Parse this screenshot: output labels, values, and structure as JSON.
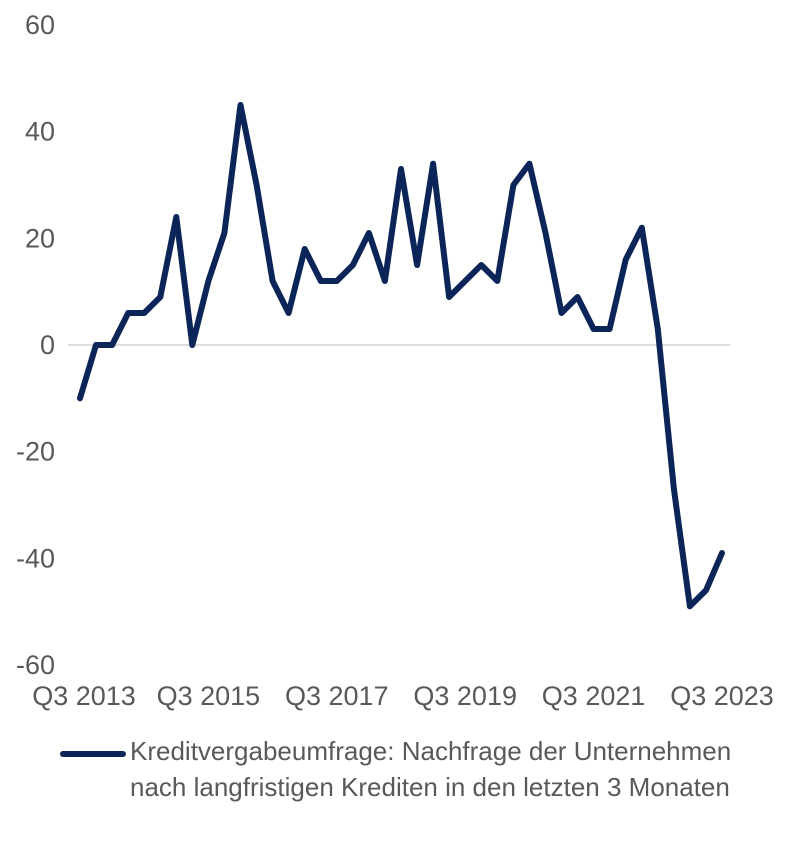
{
  "chart_data": {
    "type": "line",
    "title": "",
    "xlabel": "",
    "ylabel": "",
    "ylim": [
      -60,
      60
    ],
    "yticks": [
      60,
      40,
      20,
      0,
      -20,
      -40,
      -60
    ],
    "ytick_labels": [
      "60",
      "40",
      "20",
      "0",
      "-20",
      "-40",
      "-60"
    ],
    "xtick_labels": [
      "Q3 2013",
      "Q3 2015",
      "Q3 2017",
      "Q3 2019",
      "Q3 2021",
      "Q3 2023"
    ],
    "x": [
      "Q3 2013",
      "Q4 2013",
      "Q1 2014",
      "Q2 2014",
      "Q3 2014",
      "Q4 2014",
      "Q1 2015",
      "Q2 2015",
      "Q3 2015",
      "Q4 2015",
      "Q1 2016",
      "Q2 2016",
      "Q3 2016",
      "Q4 2016",
      "Q1 2017",
      "Q2 2017",
      "Q3 2017",
      "Q4 2017",
      "Q1 2018",
      "Q2 2018",
      "Q3 2018",
      "Q4 2018",
      "Q1 2019",
      "Q2 2019",
      "Q3 2019",
      "Q4 2019",
      "Q1 2020",
      "Q2 2020",
      "Q3 2020",
      "Q4 2020",
      "Q1 2021",
      "Q2 2021",
      "Q3 2021",
      "Q4 2021",
      "Q1 2022",
      "Q2 2022",
      "Q3 2022",
      "Q4 2022",
      "Q1 2023",
      "Q2 2023",
      "Q3 2023"
    ],
    "series": [
      {
        "name": "Kreditvergabeumfrage: Nachfrage der Unternehmen nach langfristigen Krediten in den letzten 3 Monaten",
        "color": "#0b2559",
        "values": [
          -10,
          0,
          0,
          6,
          6,
          9,
          24,
          0,
          12,
          21,
          45,
          30,
          12,
          6,
          18,
          12,
          12,
          15,
          21,
          12,
          33,
          15,
          34,
          9,
          12,
          15,
          12,
          30,
          34,
          21,
          6,
          9,
          3,
          3,
          16,
          22,
          3,
          -27,
          -49,
          -46,
          -39
        ]
      }
    ],
    "zero_line": true,
    "grid": false,
    "legend_position": "bottom"
  }
}
